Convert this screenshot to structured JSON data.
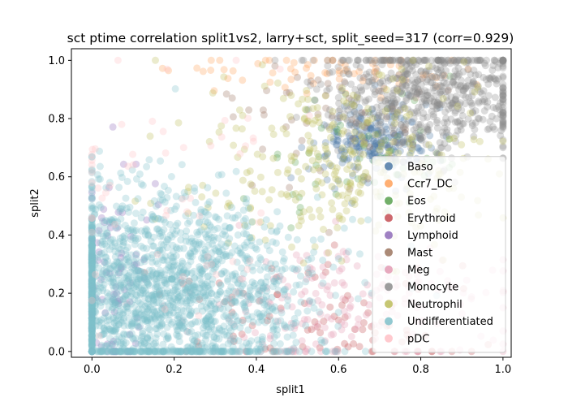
{
  "chart_data": {
    "type": "scatter",
    "title": "sct ptime correlation split1vs2, larry+sct, split_seed=317 (corr=0.929)",
    "xlabel": "split1",
    "ylabel": "split2",
    "xlim": [
      -0.05,
      1.02
    ],
    "ylim": [
      -0.02,
      1.04
    ],
    "xticks": [
      "0.0",
      "0.2",
      "0.4",
      "0.6",
      "0.8",
      "1.0"
    ],
    "yticks": [
      "0.0",
      "0.2",
      "0.4",
      "0.6",
      "0.8",
      "1.0"
    ],
    "grid": false,
    "legend_position": "lower-right",
    "point_alpha": 0.3,
    "series": [
      {
        "name": "Baso",
        "color": "#4e79a7",
        "center": [
          0.68,
          0.72
        ],
        "spread": [
          0.07,
          0.07
        ],
        "count": 220
      },
      {
        "name": "Ccr7_DC",
        "color": "#ffa15a",
        "center": [
          0.6,
          0.96
        ],
        "spread": [
          0.2,
          0.04
        ],
        "count": 70
      },
      {
        "name": "Eos",
        "color": "#59a14f",
        "center": [
          0.7,
          0.7
        ],
        "spread": [
          0.12,
          0.12
        ],
        "count": 60
      },
      {
        "name": "Erythroid",
        "color": "#c44e52",
        "center": [
          0.55,
          0.12
        ],
        "spread": [
          0.2,
          0.1
        ],
        "count": 90
      },
      {
        "name": "Lymphoid",
        "color": "#8e6bb8",
        "center": [
          0.05,
          0.25
        ],
        "spread": [
          0.05,
          0.2
        ],
        "count": 90
      },
      {
        "name": "Mast",
        "color": "#9c755f",
        "center": [
          0.6,
          0.8
        ],
        "spread": [
          0.12,
          0.12
        ],
        "count": 60
      },
      {
        "name": "Meg",
        "color": "#e39ab3",
        "center": [
          0.62,
          0.15
        ],
        "spread": [
          0.2,
          0.12
        ],
        "count": 200
      },
      {
        "name": "Monocyte",
        "color": "#8c8c8c",
        "center": [
          0.82,
          0.88
        ],
        "spread": [
          0.13,
          0.1
        ],
        "count": 650
      },
      {
        "name": "Neutrophil",
        "color": "#bcbd5a",
        "center": [
          0.62,
          0.65
        ],
        "spread": [
          0.18,
          0.15
        ],
        "count": 300
      },
      {
        "name": "Undifferentiated",
        "color": "#7fbfc9",
        "center": [
          0.15,
          0.2
        ],
        "spread": [
          0.18,
          0.17
        ],
        "count": 1900
      },
      {
        "name": "pDC",
        "color": "#ffc0c5",
        "center": [
          0.15,
          0.6
        ],
        "spread": [
          0.15,
          0.25
        ],
        "count": 60
      }
    ]
  }
}
